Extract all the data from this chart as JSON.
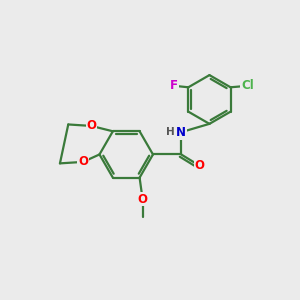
{
  "background_color": "#ebebeb",
  "bond_color": "#3a7a3a",
  "bond_width": 1.6,
  "atom_colors": {
    "O": "#ff0000",
    "N": "#0000cc",
    "F": "#cc00cc",
    "Cl": "#4db34d",
    "C": "#3a7a3a",
    "H": "#555555"
  },
  "figsize": [
    3.0,
    3.0
  ],
  "dpi": 100
}
